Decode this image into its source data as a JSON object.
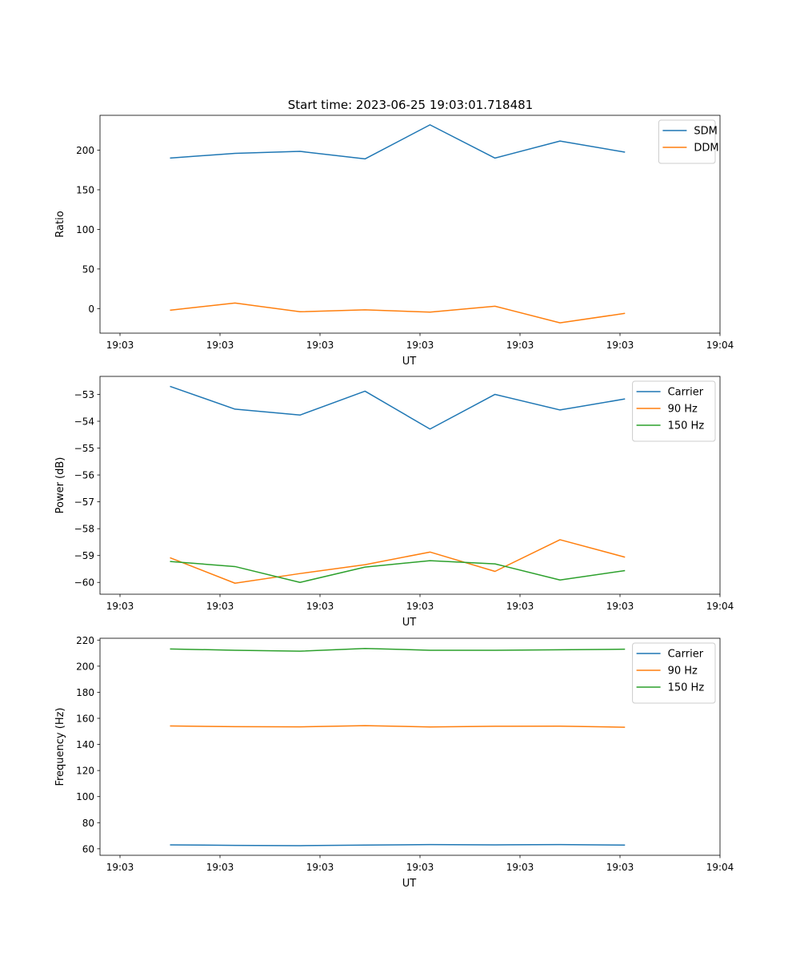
{
  "figure_title": "Start time: 2023-06-25 19:03:01.718481",
  "chart_data": [
    {
      "type": "line",
      "xlabel": "UT",
      "ylabel": "Ratio",
      "xtick_labels": [
        "19:03",
        "19:03",
        "19:03",
        "19:03",
        "19:03",
        "19:03",
        "19:04"
      ],
      "ylim": [
        -31,
        244
      ],
      "yticks": [
        0,
        50,
        100,
        150,
        200
      ],
      "legend_placement": "upper right",
      "x": [
        0.5,
        1.15,
        1.8,
        2.45,
        3.1,
        3.75,
        4.4,
        5.05
      ],
      "series": [
        {
          "name": "SDM",
          "color": "#1f77b4",
          "values": [
            190,
            196,
            198.5,
            189,
            232,
            190,
            211.5,
            197.5
          ]
        },
        {
          "name": "DDM",
          "color": "#ff7f0e",
          "values": [
            -2,
            7,
            -4,
            -1.5,
            -4.5,
            3,
            -18,
            -6
          ]
        }
      ]
    },
    {
      "type": "line",
      "xlabel": "UT",
      "ylabel": "Power (dB)",
      "xtick_labels": [
        "19:03",
        "19:03",
        "19:03",
        "19:03",
        "19:03",
        "19:03",
        "19:04"
      ],
      "ylim": [
        -60.44,
        -52.33
      ],
      "yticks": [
        -53,
        -54,
        -55,
        -56,
        -57,
        -58,
        -59,
        -60
      ],
      "legend_placement": "upper right",
      "x": [
        0.5,
        1.15,
        1.8,
        2.45,
        3.1,
        3.75,
        4.4,
        5.05
      ],
      "series": [
        {
          "name": "Carrier",
          "color": "#1f77b4",
          "values": [
            -52.7,
            -53.55,
            -53.77,
            -52.88,
            -54.29,
            -53.0,
            -53.58,
            -53.17
          ]
        },
        {
          "name": "90 Hz",
          "color": "#ff7f0e",
          "values": [
            -59.08,
            -60.03,
            -59.67,
            -59.34,
            -58.87,
            -59.59,
            -58.41,
            -59.06
          ]
        },
        {
          "name": "150 Hz",
          "color": "#2ca02c",
          "values": [
            -59.22,
            -59.41,
            -60.0,
            -59.43,
            -59.19,
            -59.31,
            -59.91,
            -59.56
          ]
        }
      ]
    },
    {
      "type": "line",
      "xlabel": "UT",
      "ylabel": "Frequency (Hz)",
      "xtick_labels": [
        "19:03",
        "19:03",
        "19:03",
        "19:03",
        "19:03",
        "19:03",
        "19:04"
      ],
      "ylim": [
        55,
        221.4
      ],
      "yticks": [
        60,
        80,
        100,
        120,
        140,
        160,
        180,
        200,
        220
      ],
      "legend_placement": "upper right",
      "x": [
        0.5,
        1.15,
        1.8,
        2.45,
        3.1,
        3.75,
        4.4,
        5.05
      ],
      "series": [
        {
          "name": "Carrier",
          "color": "#1f77b4",
          "values": [
            63,
            62.6,
            62.4,
            62.8,
            63.2,
            63.0,
            63.2,
            62.8
          ]
        },
        {
          "name": "90 Hz",
          "color": "#ff7f0e",
          "values": [
            154.2,
            153.6,
            153.5,
            154.4,
            153.4,
            153.9,
            154.0,
            153.2
          ]
        },
        {
          "name": "150 Hz",
          "color": "#2ca02c",
          "values": [
            213.2,
            212.2,
            211.5,
            213.6,
            212.2,
            212.2,
            212.6,
            213.0
          ]
        }
      ]
    }
  ]
}
